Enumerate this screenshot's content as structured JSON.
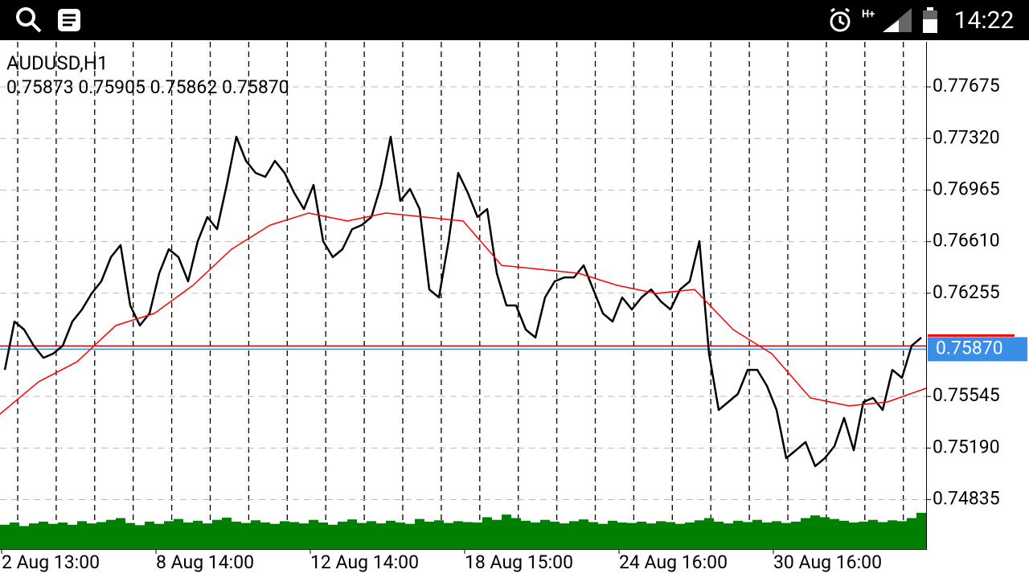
{
  "status_bar": {
    "time": "14:22"
  },
  "chart_data": {
    "type": "line",
    "title": "AUDUSD,H1",
    "subtitle": "0.75873 0.75905 0.75862 0.75870",
    "xlim": [
      0,
      96
    ],
    "xticks": [
      {
        "value": 0,
        "label": "2 Aug 13:00"
      },
      {
        "value": 16,
        "label": "8 Aug 14:00"
      },
      {
        "value": 32,
        "label": "12 Aug 14:00"
      },
      {
        "value": 48,
        "label": "18 Aug 15:00"
      },
      {
        "value": 64,
        "label": "24 Aug 16:00"
      },
      {
        "value": 80,
        "label": "30 Aug 16:00"
      }
    ],
    "ylim": [
      0.74495,
      0.77985
    ],
    "yticks": [
      0.77675,
      {
        "value": 0.7732,
        "label": "0.77320"
      },
      0.76965,
      {
        "value": 0.7661,
        "label": "0.76610"
      },
      0.76255,
      0.75545,
      {
        "value": 0.7519,
        "label": "0.75190"
      },
      0.74835
    ],
    "grid": true,
    "series": [
      {
        "color": "#000000",
        "values": [
          0.75728,
          0.7606,
          0.76005,
          0.75894,
          0.75811,
          0.75839,
          0.75894,
          0.7606,
          0.76143,
          0.76254,
          0.76337,
          0.76503,
          0.76586,
          0.76171,
          0.76033,
          0.76116,
          0.76392,
          0.76558,
          0.76503,
          0.76337,
          0.76613,
          0.76779,
          0.76696,
          0.77,
          0.77332,
          0.77166,
          0.77083,
          0.77056,
          0.77166,
          0.77083,
          0.76945,
          0.76834,
          0.77,
          0.76613,
          0.76503,
          0.76558,
          0.76696,
          0.76724,
          0.76779,
          0.77,
          0.77332,
          0.7689,
          0.76973,
          0.76834,
          0.76281,
          0.76226,
          0.76613,
          0.77083,
          0.76945,
          0.76779,
          0.76834,
          0.76392,
          0.76171,
          0.76171,
          0.76005,
          0.7595,
          0.76226,
          0.76337,
          0.76364,
          0.76364,
          0.76447,
          0.76281,
          0.76116,
          0.7606,
          0.76226,
          0.76143,
          0.76226,
          0.76281,
          0.76199,
          0.76143,
          0.76281,
          0.76337,
          0.76613,
          0.75839,
          0.75452,
          0.75507,
          0.75563,
          0.75728,
          0.75728,
          0.75618,
          0.75452,
          0.7512,
          0.75175,
          0.75231,
          0.75065,
          0.7512,
          0.75203,
          0.75397,
          0.75175,
          0.75507,
          0.75535,
          0.75452,
          0.75728,
          0.75673,
          0.75894,
          0.7595
        ]
      },
      {
        "color": "#ff0000",
        "x": [
          0,
          4,
          8,
          12,
          16,
          20,
          24,
          28,
          32,
          36,
          40,
          44,
          48,
          52,
          56,
          60,
          64,
          68,
          72,
          76,
          80,
          84,
          88,
          92,
          96
        ],
        "values": [
          0.75424,
          0.75646,
          0.75784,
          0.76033,
          0.76116,
          0.76309,
          0.76558,
          0.76724,
          0.76807,
          0.76752,
          0.76807,
          0.76779,
          0.76752,
          0.76447,
          0.7642,
          0.76392,
          0.76309,
          0.76254,
          0.76281,
          0.76005,
          0.75839,
          0.75535,
          0.7548,
          0.75507,
          0.75601
        ]
      }
    ],
    "ask": {
      "value": 0.75892,
      "color": "#cc0000"
    },
    "bid": {
      "value": 0.7587,
      "label": "0.75870",
      "color": "#3a8ee6"
    },
    "volume": {
      "color": "#008000",
      "ylim": [
        0,
        100
      ],
      "values": [
        55,
        60,
        52,
        58,
        62,
        57,
        60,
        55,
        63,
        58,
        61,
        66,
        70,
        59,
        54,
        62,
        57,
        63,
        68,
        60,
        64,
        58,
        66,
        71,
        62,
        59,
        65,
        60,
        57,
        63,
        61,
        58,
        66,
        60,
        55,
        62,
        67,
        59,
        63,
        58,
        64,
        60,
        57,
        68,
        62,
        65,
        59,
        63,
        61,
        60,
        72,
        66,
        78,
        70,
        64,
        60,
        66,
        62,
        58,
        63,
        67,
        61,
        57,
        64,
        60,
        59,
        62,
        58,
        63,
        61,
        57,
        60,
        65,
        70,
        62,
        58,
        64,
        61,
        66,
        60,
        63,
        59,
        62,
        70,
        76,
        72,
        68,
        64,
        60,
        62,
        66,
        61,
        65,
        63,
        70,
        82
      ]
    }
  }
}
